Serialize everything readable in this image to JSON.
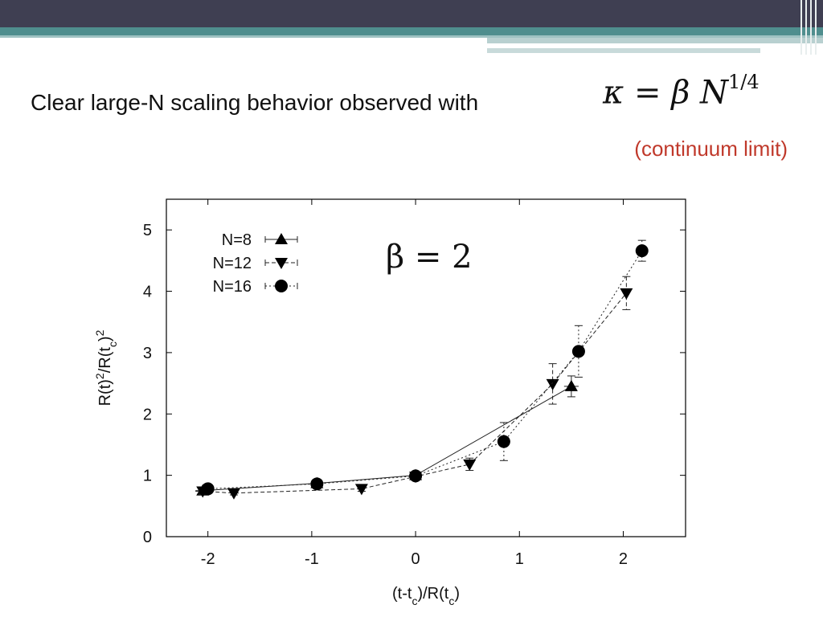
{
  "slide": {
    "headline": "Clear large-N scaling behavior observed with",
    "formula": {
      "kappa": "κ",
      "eq": "=",
      "beta": "β",
      "n": "N",
      "exp": "1/4"
    },
    "subnote": "(continuum limit)",
    "colors": {
      "topbar": "#3f3f52",
      "teal": "#4f8e8e",
      "subnote": "#c0392b"
    }
  },
  "chart_data": {
    "type": "scatter",
    "annotation": "β = 2",
    "xlabel": "(t-tc)/R(tc)",
    "ylabel": "R(t)2/R(tc)2",
    "xlim": [
      -2.4,
      2.6
    ],
    "ylim": [
      0,
      5.5
    ],
    "xticks": [
      "-2",
      "-1",
      "0",
      "1",
      "2"
    ],
    "yticks": [
      "0",
      "1",
      "2",
      "3",
      "4",
      "5"
    ],
    "legend_position": "top-left",
    "grid": false,
    "series": [
      {
        "name": "N=8",
        "marker": "triangle-up",
        "line": "solid",
        "points": [
          {
            "x": -2.05,
            "y": 0.75,
            "xerr": 0.07,
            "yerr": 0.05
          },
          {
            "x": -0.95,
            "y": 0.87,
            "xerr": 0,
            "yerr": 0.03
          },
          {
            "x": 0.0,
            "y": 1.0,
            "xerr": 0,
            "yerr": 0.03
          },
          {
            "x": 1.5,
            "y": 2.45,
            "xerr": 0.07,
            "yerr": 0.17
          }
        ]
      },
      {
        "name": "N=12",
        "marker": "triangle-down",
        "line": "dashed",
        "points": [
          {
            "x": -2.05,
            "y": 0.74,
            "xerr": 0.07,
            "yerr": 0.05
          },
          {
            "x": -1.75,
            "y": 0.71,
            "xerr": 0,
            "yerr": 0.03
          },
          {
            "x": -0.52,
            "y": 0.78,
            "xerr": 0,
            "yerr": 0.04
          },
          {
            "x": 0.0,
            "y": 0.98,
            "xerr": 0,
            "yerr": 0.03
          },
          {
            "x": 0.52,
            "y": 1.18,
            "xerr": 0,
            "yerr": 0.1
          },
          {
            "x": 1.32,
            "y": 2.49,
            "xerr": 0,
            "yerr": 0.33
          },
          {
            "x": 2.03,
            "y": 3.97,
            "xerr": 0,
            "yerr": 0.27
          }
        ]
      },
      {
        "name": "N=16",
        "marker": "circle",
        "line": "dotted",
        "points": [
          {
            "x": -2.0,
            "y": 0.78,
            "xerr": 0.05,
            "yerr": 0.04
          },
          {
            "x": -0.95,
            "y": 0.86,
            "xerr": 0,
            "yerr": 0.03
          },
          {
            "x": 0.0,
            "y": 0.99,
            "xerr": 0,
            "yerr": 0.03
          },
          {
            "x": 0.85,
            "y": 1.55,
            "xerr": 0,
            "yerr": 0.31
          },
          {
            "x": 1.57,
            "y": 3.02,
            "xerr": 0,
            "yerr": 0.42
          },
          {
            "x": 2.18,
            "y": 4.66,
            "xerr": 0,
            "yerr": 0.17
          }
        ]
      }
    ]
  }
}
